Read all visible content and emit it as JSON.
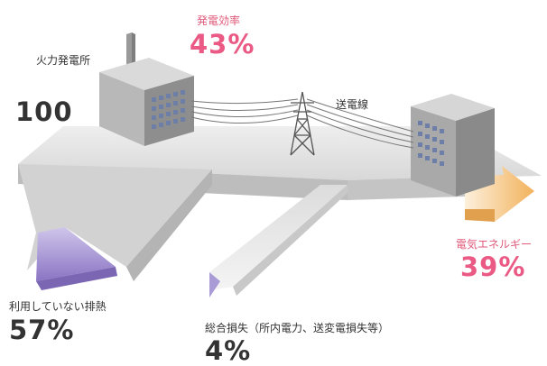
{
  "input": {
    "label": "火力発電所",
    "value": "100"
  },
  "efficiency": {
    "label": "発電効率",
    "value": "43%"
  },
  "line": {
    "label": "送電線"
  },
  "output": {
    "label": "電気エネルギー",
    "value": "39%"
  },
  "waste_heat": {
    "label": "利用していない排熱",
    "value": "57%"
  },
  "loss": {
    "label": "総合損失（所内電力、送変電損失等）",
    "value": "4%"
  },
  "colors": {
    "accent_pink": "#ea5a84",
    "heat_purple": "#9c88cc",
    "electric_orange": "#f2b25c",
    "road_gray": "#d6d6d6"
  },
  "icons": [
    "power-plant-icon",
    "transmission-tower-icon",
    "office-building-icon"
  ]
}
